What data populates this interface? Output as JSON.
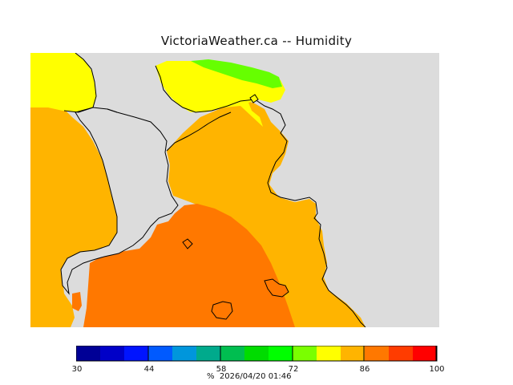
{
  "title": "VictoriaWeather.ca -- Humidity",
  "map": {
    "land_color": "#dcdcdc",
    "coast_color": "#000000",
    "regions": [
      {
        "name": "zone-60-70",
        "color": "#66ff00"
      },
      {
        "name": "zone-70-80",
        "color": "#ffff00"
      },
      {
        "name": "zone-80-90",
        "color": "#ffb400"
      },
      {
        "name": "zone-90-100",
        "color": "#ff7800"
      }
    ]
  },
  "legend": {
    "unit_label": "%",
    "timestamp": "2026/04/20 01:46",
    "ticks": [
      "30",
      "44",
      "58",
      "72",
      "86",
      "100"
    ],
    "colors": [
      "#000096",
      "#0000c8",
      "#0014ff",
      "#005aff",
      "#0096dc",
      "#00aa8c",
      "#00be50",
      "#00dc00",
      "#00ff00",
      "#7aff00",
      "#ffff00",
      "#ffb400",
      "#ff7800",
      "#ff3c00",
      "#ff0000"
    ]
  }
}
